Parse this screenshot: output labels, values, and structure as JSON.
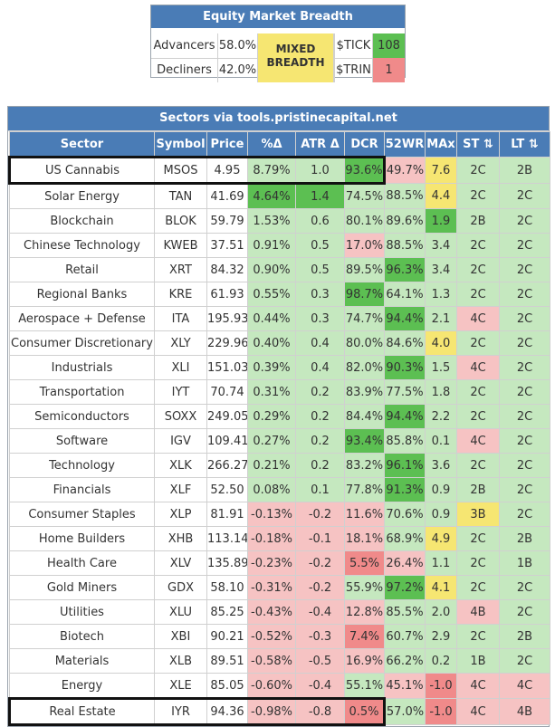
{
  "breadth": {
    "title": "Equity Market Breadth",
    "advancers_label": "Advancers",
    "advancers_value": "58.0%",
    "decliners_label": "Decliners",
    "decliners_value": "42.0%",
    "mixed_line1": "MIXED",
    "mixed_line2": "BREADTH",
    "tick_label": "$TICK",
    "tick_value": "108",
    "trin_label": "$TRIN",
    "trin_value": "1",
    "colors": {
      "tick_bg": "#5cbf52",
      "trin_bg": "#f08a8a",
      "mixed_bg": "#f6e672",
      "header_bg": "#4a7cb6"
    }
  },
  "sectors": {
    "title": "Sectors via tools.pristinecapital.net",
    "columns": [
      "Sector",
      "Symbol",
      "Price",
      "%Δ",
      "ATR Δ",
      "DCR",
      "52WR",
      "MAx",
      "ST ⇅",
      "LT ⇅"
    ],
    "rows": [
      [
        "US Cannabis",
        "MSOS",
        "4.95",
        "8.79%",
        "1.0",
        "93.6%",
        "49.7%",
        "7.6",
        "2C",
        "2B"
      ],
      [
        "Solar Energy",
        "TAN",
        "41.69",
        "4.64%",
        "1.4",
        "74.5%",
        "88.5%",
        "4.4",
        "2C",
        "2C"
      ],
      [
        "Blockchain",
        "BLOK",
        "59.79",
        "1.53%",
        "0.6",
        "80.1%",
        "89.6%",
        "1.9",
        "2B",
        "2C"
      ],
      [
        "Chinese Technology",
        "KWEB",
        "37.51",
        "0.91%",
        "0.5",
        "17.0%",
        "88.5%",
        "3.4",
        "2C",
        "2C"
      ],
      [
        "Retail",
        "XRT",
        "84.32",
        "0.90%",
        "0.5",
        "89.5%",
        "96.3%",
        "3.4",
        "2C",
        "2C"
      ],
      [
        "Regional Banks",
        "KRE",
        "61.93",
        "0.55%",
        "0.3",
        "98.7%",
        "64.1%",
        "1.3",
        "2C",
        "2C"
      ],
      [
        "Aerospace + Defense",
        "ITA",
        "195.93",
        "0.44%",
        "0.3",
        "74.7%",
        "94.4%",
        "2.1",
        "4C",
        "2C"
      ],
      [
        "Consumer Discretionary",
        "XLY",
        "229.96",
        "0.40%",
        "0.4",
        "80.0%",
        "84.6%",
        "4.0",
        "2C",
        "2C"
      ],
      [
        "Industrials",
        "XLI",
        "151.03",
        "0.39%",
        "0.4",
        "82.0%",
        "90.3%",
        "1.5",
        "4C",
        "2C"
      ],
      [
        "Transportation",
        "IYT",
        "70.74",
        "0.31%",
        "0.2",
        "83.9%",
        "77.5%",
        "1.8",
        "2C",
        "2C"
      ],
      [
        "Semiconductors",
        "SOXX",
        "249.05",
        "0.29%",
        "0.2",
        "84.4%",
        "94.4%",
        "2.2",
        "2C",
        "2C"
      ],
      [
        "Software",
        "IGV",
        "109.41",
        "0.27%",
        "0.2",
        "93.4%",
        "85.8%",
        "0.1",
        "4C",
        "2C"
      ],
      [
        "Technology",
        "XLK",
        "266.27",
        "0.21%",
        "0.2",
        "83.2%",
        "96.1%",
        "3.6",
        "2C",
        "2C"
      ],
      [
        "Financials",
        "XLF",
        "52.50",
        "0.08%",
        "0.1",
        "77.8%",
        "91.3%",
        "0.9",
        "2B",
        "2C"
      ],
      [
        "Consumer Staples",
        "XLP",
        "81.91",
        "-0.13%",
        "-0.2",
        "11.6%",
        "70.6%",
        "0.9",
        "3B",
        "2C"
      ],
      [
        "Home Builders",
        "XHB",
        "113.14",
        "-0.18%",
        "-0.1",
        "18.1%",
        "68.9%",
        "4.9",
        "2C",
        "2B"
      ],
      [
        "Health Care",
        "XLV",
        "135.89",
        "-0.23%",
        "-0.2",
        "5.5%",
        "26.4%",
        "1.1",
        "2C",
        "1B"
      ],
      [
        "Gold Miners",
        "GDX",
        "58.10",
        "-0.31%",
        "-0.2",
        "55.9%",
        "97.2%",
        "4.1",
        "2C",
        "2C"
      ],
      [
        "Utilities",
        "XLU",
        "85.25",
        "-0.43%",
        "-0.4",
        "12.8%",
        "85.5%",
        "2.0",
        "4B",
        "2C"
      ],
      [
        "Biotech",
        "XBI",
        "90.21",
        "-0.52%",
        "-0.3",
        "7.4%",
        "60.7%",
        "2.9",
        "2C",
        "2B"
      ],
      [
        "Materials",
        "XLB",
        "89.51",
        "-0.58%",
        "-0.5",
        "16.9%",
        "66.2%",
        "0.2",
        "1B",
        "2C"
      ],
      [
        "Energy",
        "XLE",
        "85.05",
        "-0.60%",
        "-0.4",
        "55.1%",
        "45.1%",
        "-1.0",
        "4C",
        "4C"
      ],
      [
        "Real Estate",
        "IYR",
        "94.36",
        "-0.98%",
        "-0.8",
        "0.5%",
        "57.0%",
        "-1.0",
        "4C",
        "4B"
      ]
    ],
    "highlighted_rows": [
      0,
      22
    ],
    "palette": {
      "W": "#ffffff",
      "G": "#c5e8bf",
      "D": "#5cbf52",
      "P": "#f6c3c3",
      "R": "#f08a8a",
      "Y": "#f6e672"
    },
    "cell_colors": [
      "WWWGGDPYGG",
      "WWWDDGGYGG",
      "WWWGGGGDGG",
      "WWWGGPGGGG",
      "WWWGGGDGGG",
      "WWWGGDGGGG",
      "WWWGGGDGPG",
      "WWWGGGGYGG",
      "WWWGGGDGPG",
      "WWWGGGGGGG",
      "WWWGGGDGGG",
      "WWWGGDGGPG",
      "WWWGGGDGGG",
      "WWWGGGDGGG",
      "WWWPPPGGYG",
      "WWWPPPGYGG",
      "WWWPPRPGGG",
      "WWWPPGDYGG",
      "WWWPPPGGPG",
      "WWWPPRGGGG",
      "WWWPPPGGGG",
      "WWWPPGPRPP",
      "WWWPPRGRPP"
    ]
  }
}
